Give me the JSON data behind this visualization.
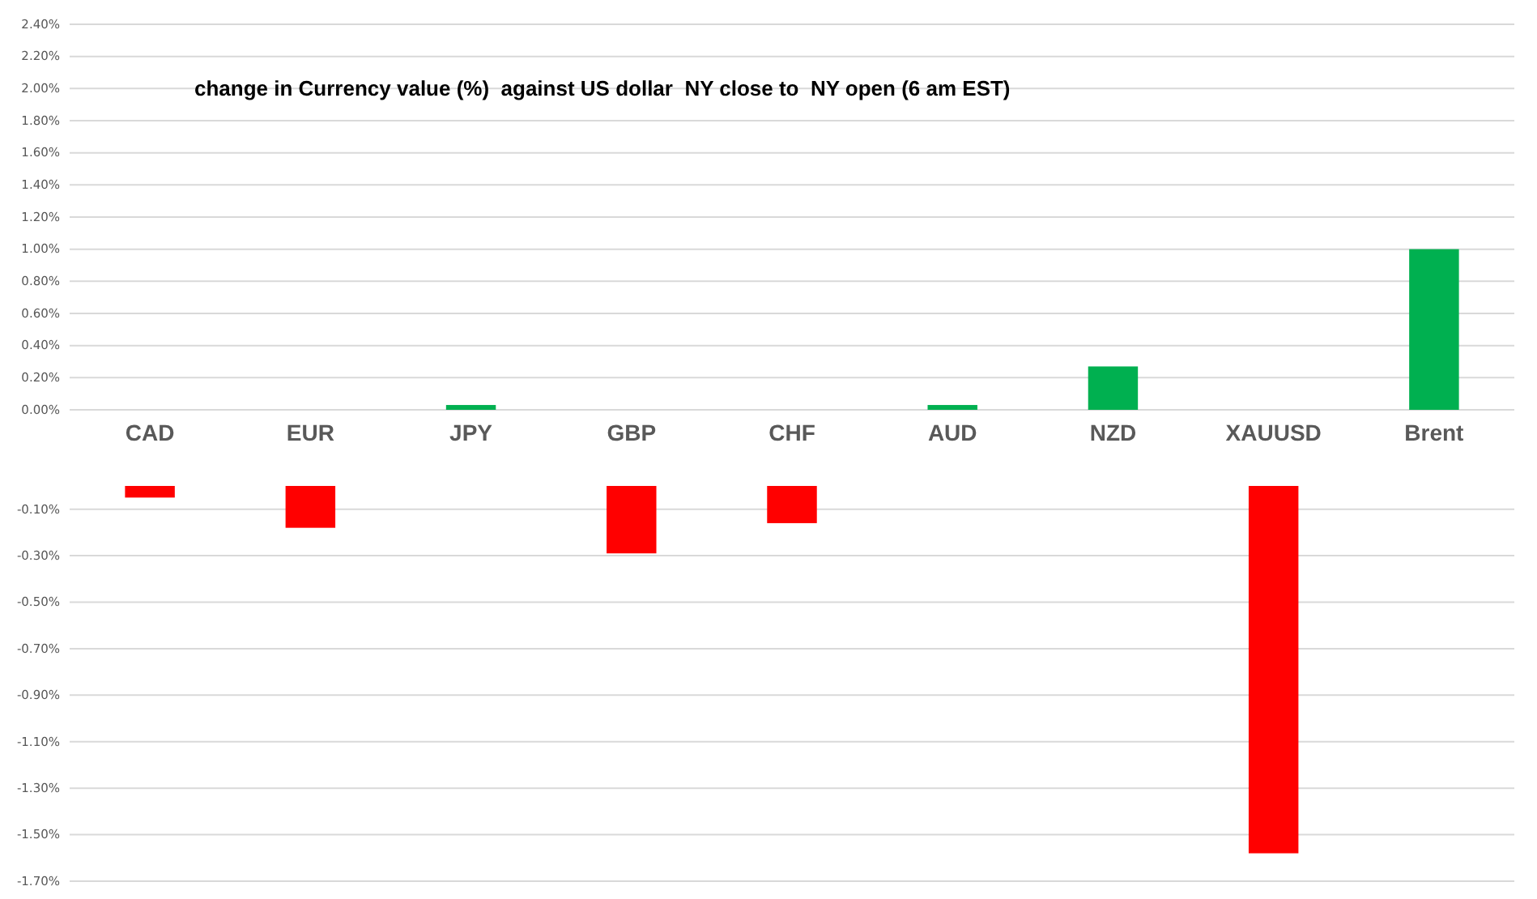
{
  "chart_data": [
    {
      "type": "bar",
      "title": "change in Currency value (%)  against US dollar  NY close to  NY open (6 am EST)",
      "categories": [
        "CAD",
        "EUR",
        "JPY",
        "GBP",
        "CHF",
        "AUD",
        "NZD",
        "XAUUSD",
        "Brent"
      ],
      "values": [
        null,
        null,
        0.03,
        null,
        null,
        0.03,
        0.27,
        null,
        1.0
      ],
      "color": "#00b050",
      "ylim": [
        0,
        2.4
      ],
      "yticks": [
        {
          "value": 0,
          "label": "0.00%"
        },
        {
          "value": 0.2,
          "label": "0.20%"
        },
        {
          "value": 0.4,
          "label": "0.40%"
        },
        {
          "value": 0.6,
          "label": "0.60%"
        },
        {
          "value": 0.8,
          "label": "0.80%"
        },
        {
          "value": 1.0,
          "label": "1.00%"
        },
        {
          "value": 1.2,
          "label": "1.20%"
        },
        {
          "value": 1.4,
          "label": "1.40%"
        },
        {
          "value": 1.6,
          "label": "1.60%"
        },
        {
          "value": 1.8,
          "label": "1.80%"
        },
        {
          "value": 2.0,
          "label": "2.00%"
        },
        {
          "value": 2.2,
          "label": "2.20%"
        },
        {
          "value": 2.4,
          "label": "2.40%"
        }
      ],
      "grid": "y"
    },
    {
      "type": "bar",
      "categories": [
        null,
        null,
        null,
        null,
        null,
        null,
        null,
        null,
        null
      ],
      "values": [
        -0.05,
        -0.18,
        null,
        -0.29,
        -0.16,
        null,
        null,
        -1.58,
        null
      ],
      "color": "#ff0000",
      "ylim": [
        -1.7,
        0
      ],
      "yticks": [
        {
          "value": -0.1,
          "label": "-0.10%"
        },
        {
          "value": -0.3,
          "label": "-0.30%"
        },
        {
          "value": -0.5,
          "label": "-0.50%"
        },
        {
          "value": -0.7,
          "label": "-0.70%"
        },
        {
          "value": -0.9,
          "label": "-0.90%"
        },
        {
          "value": -1.1,
          "label": "-1.10%"
        },
        {
          "value": -1.3,
          "label": "-1.30%"
        },
        {
          "value": -1.5,
          "label": "-1.50%"
        },
        {
          "value": -1.7,
          "label": "-1.70%"
        }
      ],
      "grid": "y",
      "tick_labels": "y"
    }
  ]
}
